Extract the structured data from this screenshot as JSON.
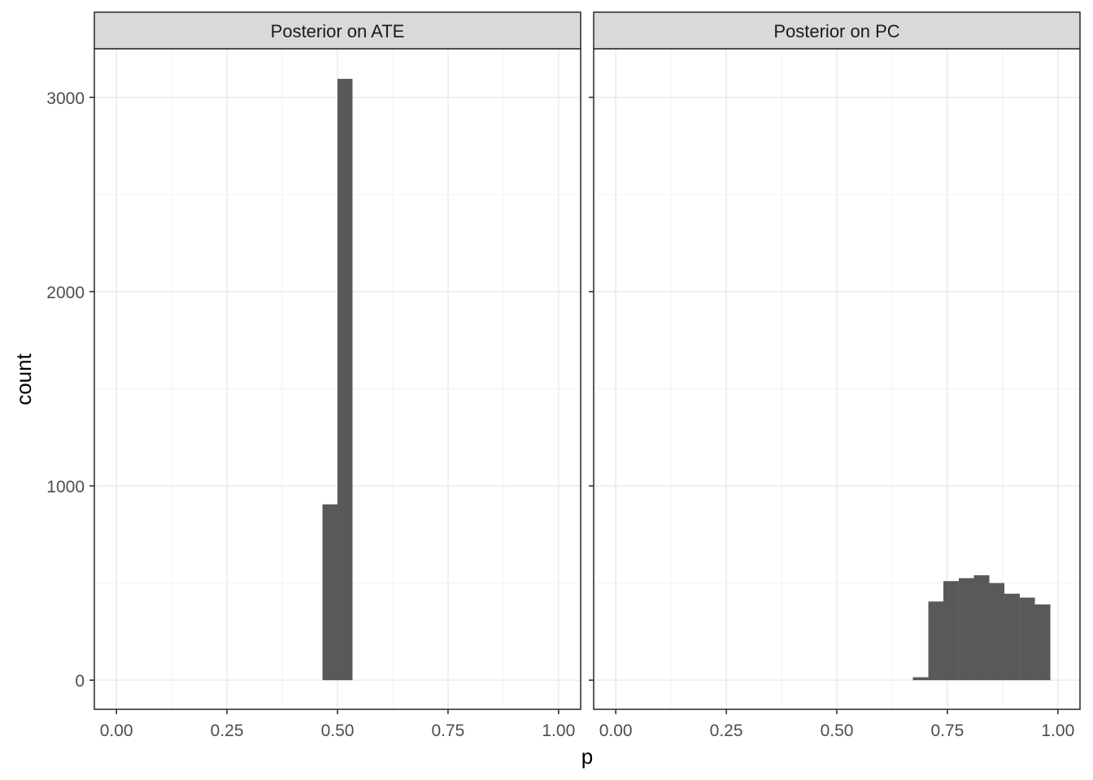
{
  "chart_data": {
    "type": "histogram",
    "xlabel": "p",
    "ylabel": "count",
    "xlim": [
      -0.05,
      1.05
    ],
    "ylim": [
      -150,
      3250
    ],
    "x_ticks": [
      "0.00",
      "0.25",
      "0.50",
      "0.75",
      "1.00"
    ],
    "x_tick_values": [
      0,
      0.25,
      0.5,
      0.75,
      1.0
    ],
    "y_ticks": [
      "0",
      "1000",
      "2000",
      "3000"
    ],
    "y_tick_values": [
      0,
      1000,
      2000,
      3000
    ],
    "grid": true,
    "bar_color": "#595959",
    "panels": [
      {
        "title": "Posterior on ATE",
        "bars": [
          {
            "x0": 0.466,
            "x1": 0.5,
            "count": 905
          },
          {
            "x0": 0.5,
            "x1": 0.534,
            "count": 3095
          }
        ]
      },
      {
        "title": "Posterior on PC",
        "bars": [
          {
            "x0": 0.672,
            "x1": 0.707,
            "count": 15
          },
          {
            "x0": 0.707,
            "x1": 0.741,
            "count": 405
          },
          {
            "x0": 0.741,
            "x1": 0.776,
            "count": 510
          },
          {
            "x0": 0.776,
            "x1": 0.81,
            "count": 525
          },
          {
            "x0": 0.81,
            "x1": 0.845,
            "count": 540
          },
          {
            "x0": 0.845,
            "x1": 0.879,
            "count": 500
          },
          {
            "x0": 0.879,
            "x1": 0.914,
            "count": 445
          },
          {
            "x0": 0.914,
            "x1": 0.948,
            "count": 425
          },
          {
            "x0": 0.948,
            "x1": 0.983,
            "count": 390
          }
        ]
      }
    ]
  }
}
